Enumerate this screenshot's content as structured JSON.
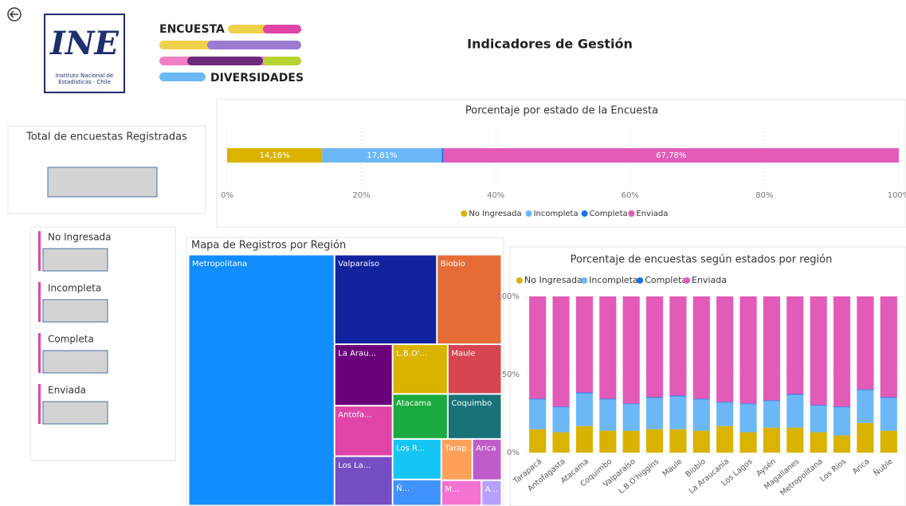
{
  "header": {
    "title": "Indicadores de Gestión",
    "logo": {
      "mark": "INE",
      "caption": [
        "Instituto Nacional de",
        "Estadísticas · Chile"
      ]
    },
    "survey_logo": {
      "top": "ENCUESTA",
      "bottom": "DIVERSIDADES"
    }
  },
  "cards": {
    "total": {
      "title": "Total de encuestas Registradas"
    },
    "status": [
      "No Ingresada",
      "Incompleta",
      "Completa",
      "Enviada"
    ]
  },
  "chart_data": [
    {
      "type": "bar",
      "orientation": "horizontal",
      "stacked": true,
      "title": "Porcentaje por estado de la Encuesta",
      "series": [
        {
          "name": "No Ingresada",
          "color": "#d9b300",
          "values": [
            14.16
          ],
          "value_labels": [
            "14,16%"
          ]
        },
        {
          "name": "Incompleta",
          "color": "#6cb8f6",
          "values": [
            17.81
          ],
          "value_labels": [
            "17,81%"
          ]
        },
        {
          "name": "Completa",
          "color": "#1a73e8",
          "values": [
            0.25
          ]
        },
        {
          "name": "Enviada",
          "color": "#e25bb8",
          "values": [
            67.78
          ],
          "value_labels": [
            "67,78%"
          ]
        }
      ],
      "xlim": [
        0,
        100
      ],
      "xticks": [
        {
          "value": 0,
          "label": "0%"
        },
        {
          "value": 20,
          "label": "20%"
        },
        {
          "value": 40,
          "label": "40%"
        },
        {
          "value": 60,
          "label": "60%"
        },
        {
          "value": 80,
          "label": "80%"
        },
        {
          "value": 100,
          "label": "100%"
        }
      ],
      "grid": true,
      "legend": "bottom"
    },
    {
      "type": "treemap",
      "title": "Mapa de Registros por Región",
      "categories": [
        "Metropolitana",
        "Valparaíso",
        "Biobío",
        "La Arau...",
        "Antofa...",
        "Los La...",
        "L.B.O'...",
        "Maule",
        "Atacama",
        "Coquimbo",
        "Los R...",
        "Ñ...",
        "Tarap...",
        "Arica",
        "M...",
        "A..."
      ],
      "values": [
        575,
        144,
        91,
        56,
        46,
        45,
        43,
        42,
        39,
        38,
        31,
        20,
        20,
        19,
        16,
        8
      ],
      "colors": [
        "#118dff",
        "#12239e",
        "#e66c37",
        "#6b007b",
        "#e044a7",
        "#744ec2",
        "#d9b300",
        "#d64550",
        "#1aab40",
        "#197278",
        "#15c6f4",
        "#4092ff",
        "#ffa058",
        "#be5dc9",
        "#f472d0",
        "#b5a1ff"
      ]
    },
    {
      "type": "bar",
      "orientation": "vertical",
      "stacked": true,
      "title": "Porcentaje de encuestas según estados por región",
      "categories": [
        "Tarapacá",
        "Antofagasta",
        "Atacama",
        "Coquimbo",
        "Valparaíso",
        "L.B.O'higgins",
        "Maule",
        "Biobío",
        "La Araucanía",
        "Los Lagos",
        "Aysén",
        "Magallanes",
        "Metropolitana",
        "Los Ríos",
        "Arica",
        "Ñuble"
      ],
      "series": [
        {
          "name": "No Ingresada",
          "color": "#d9b300",
          "values": [
            15,
            13,
            17,
            14,
            14,
            15,
            15,
            14,
            17,
            13,
            16,
            16,
            13,
            11,
            19,
            14
          ]
        },
        {
          "name": "Incompleta",
          "color": "#6cb8f6",
          "values": [
            19,
            16,
            21,
            20,
            17,
            20,
            21,
            20,
            15,
            18,
            17,
            21,
            17,
            18,
            21,
            21
          ]
        },
        {
          "name": "Completa",
          "color": "#1a73e8",
          "values": [
            0.5,
            0.5,
            0.5,
            0.5,
            0.5,
            0.5,
            0.5,
            0.5,
            0.5,
            0.5,
            0.5,
            0.5,
            0.5,
            0.5,
            0.5,
            0.5
          ]
        },
        {
          "name": "Enviada",
          "color": "#e25bb8",
          "values": [
            65.5,
            70.5,
            61.5,
            65.5,
            68.5,
            64.5,
            63.5,
            65.5,
            67.5,
            68.5,
            66.5,
            62.5,
            69.5,
            70.5,
            59.5,
            64.5
          ]
        }
      ],
      "ylim": [
        0,
        100
      ],
      "yticks": [
        {
          "value": 0,
          "label": "0%"
        },
        {
          "value": 50,
          "label": "50%"
        },
        {
          "value": 100,
          "label": "100%"
        }
      ],
      "grid": true,
      "legend": "top-left"
    }
  ]
}
